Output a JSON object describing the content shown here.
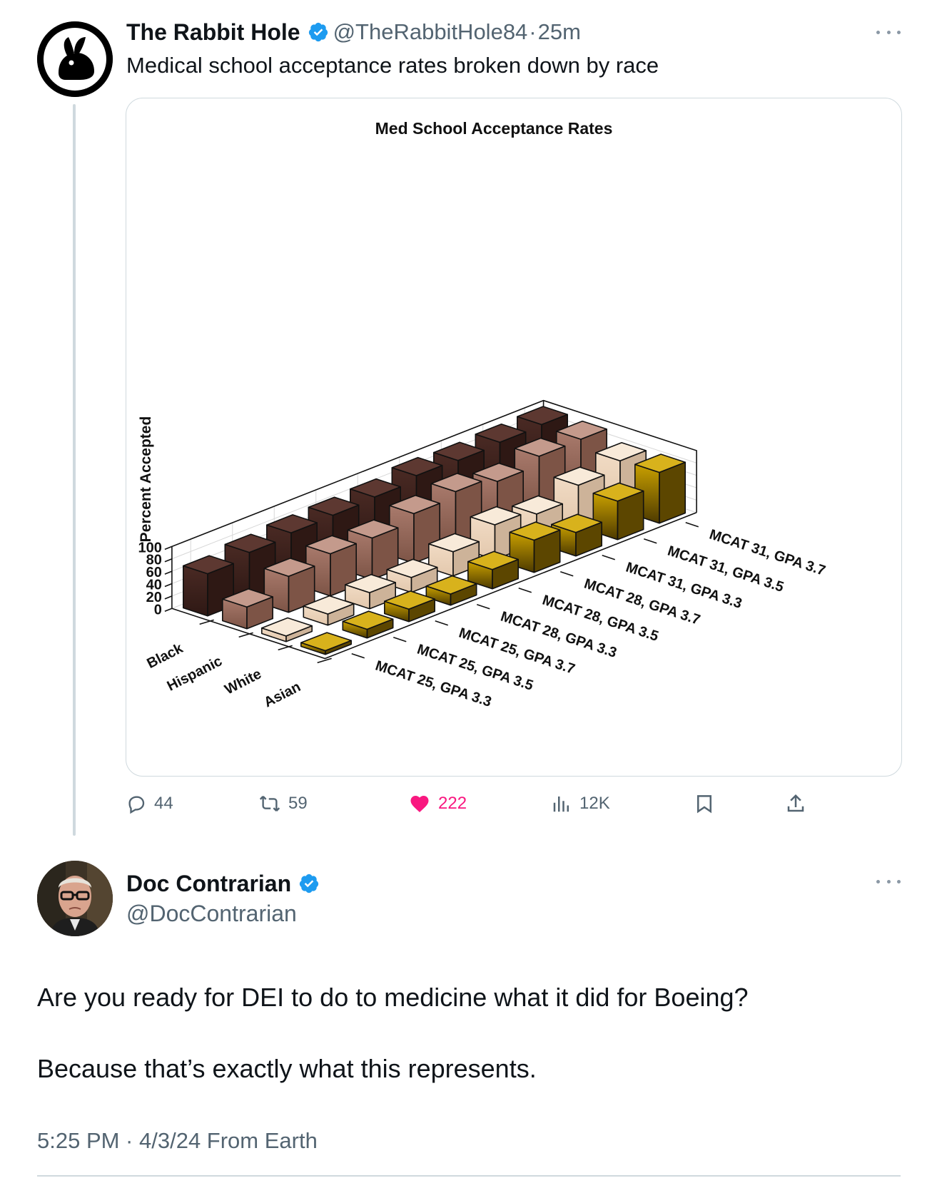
{
  "post1": {
    "author_name": "The Rabbit Hole",
    "handle": "@TheRabbitHole84",
    "separator": "·",
    "time": "25m",
    "text": "Medical school acceptance rates broken down by race",
    "actions": {
      "replies": "44",
      "reposts": "59",
      "likes": "222",
      "views": "12K"
    }
  },
  "post2": {
    "author_name": "Doc Contrarian",
    "handle": "@DocContrarian",
    "line1": "Are you ready for DEI to do to medicine what it did for Boeing?",
    "line2": "Because that’s exactly what this represents.",
    "meta": "5:25 PM · 4/3/24 From Earth"
  },
  "icons": {
    "verified": "verified-badge-icon",
    "more": "more-dots-icon",
    "reply": "reply-icon",
    "repost": "repost-icon",
    "like": "heart-icon",
    "views": "views-icon",
    "bookmark": "bookmark-icon",
    "share": "share-icon"
  },
  "colors": {
    "verified": "#1d9bf0",
    "like": "#f91880",
    "muted": "#536471",
    "black_series": "#4a2a24",
    "hispanic_series": "#a97a6c",
    "white_series": "#f1dbc4",
    "asian_series": "#c9a000"
  },
  "chart_data": {
    "type": "bar",
    "title": "Med School Acceptance Rates",
    "ylabel": "Percent Accepted",
    "ylim": [
      0,
      100
    ],
    "yticks": [
      "0",
      "20",
      "40",
      "60",
      "80",
      "100"
    ],
    "categories": [
      "MCAT 25, GPA 3.3",
      "MCAT 25, GPA 3.5",
      "MCAT 25, GPA 3.7",
      "MCAT 28, GPA 3.3",
      "MCAT 28, GPA 3.5",
      "MCAT 28, GPA 3.7",
      "MCAT 31, GPA 3.3",
      "MCAT 31, GPA 3.5",
      "MCAT 31, GPA 3.7"
    ],
    "series": [
      {
        "name": "Black",
        "values": [
          68,
          76,
          81,
          83,
          86,
          94,
          92,
          95,
          97
        ]
      },
      {
        "name": "Hispanic",
        "values": [
          35,
          58,
          68,
          67,
          80,
          89,
          79,
          93,
          94
        ]
      },
      {
        "name": "White",
        "values": [
          9,
          18,
          26,
          24,
          39,
          56,
          47,
          67,
          80
        ]
      },
      {
        "name": "Asian",
        "values": [
          6,
          14,
          20,
          18,
          31,
          52,
          38,
          62,
          82
        ]
      }
    ],
    "grid": true
  }
}
